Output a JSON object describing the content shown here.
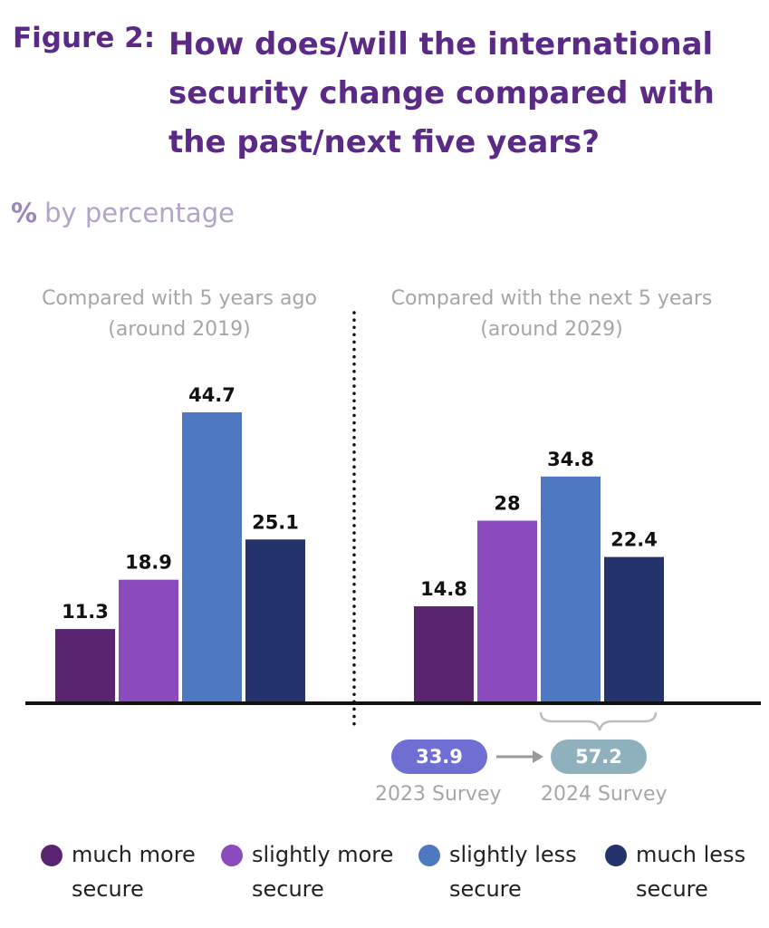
{
  "figure_label": "Figure 2:",
  "title_lines": [
    "How does/will the international",
    "security change compared with",
    "the past/next five years?"
  ],
  "subtitle_symbol": "%",
  "subtitle": "by percentage",
  "colors": {
    "much_more_secure": "#5a2570",
    "slightly_more_secure": "#8c4bbd",
    "slightly_less_secure": "#4e79c2",
    "much_less_secure": "#24336b",
    "survey_2023": "#6f6fd3",
    "survey_2024": "#8fb1bd",
    "title": "#5b2a86"
  },
  "chart_data": [
    {
      "type": "bar",
      "panel_label_lines": [
        "Compared with 5 years ago",
        "(around 2019)"
      ],
      "categories": [
        "much more secure",
        "slightly more secure",
        "slightly less secure",
        "much less secure"
      ],
      "values": [
        11.3,
        18.9,
        44.7,
        25.1
      ],
      "value_labels": [
        "11.3",
        "18.9",
        "44.7",
        "25.1"
      ],
      "ylim": [
        0,
        50
      ]
    },
    {
      "type": "bar",
      "panel_label_lines": [
        "Compared with the next 5 years",
        "(around 2029)"
      ],
      "categories": [
        "much more secure",
        "slightly more secure",
        "slightly less secure",
        "much less secure"
      ],
      "values": [
        14.8,
        28,
        34.8,
        22.4
      ],
      "value_labels": [
        "14.8",
        "28",
        "34.8",
        "22.4"
      ],
      "ylim": [
        0,
        50
      ]
    }
  ],
  "survey_comparison": {
    "survey_2023": {
      "value": "33.9",
      "label": "2023 Survey"
    },
    "survey_2024": {
      "value": "57.2",
      "label": "2024 Survey"
    }
  },
  "legend": [
    {
      "lines": [
        "much more",
        "secure"
      ]
    },
    {
      "lines": [
        "slightly more",
        "secure"
      ]
    },
    {
      "lines": [
        "slightly less",
        "secure"
      ]
    },
    {
      "lines": [
        "much less",
        "secure"
      ]
    }
  ]
}
